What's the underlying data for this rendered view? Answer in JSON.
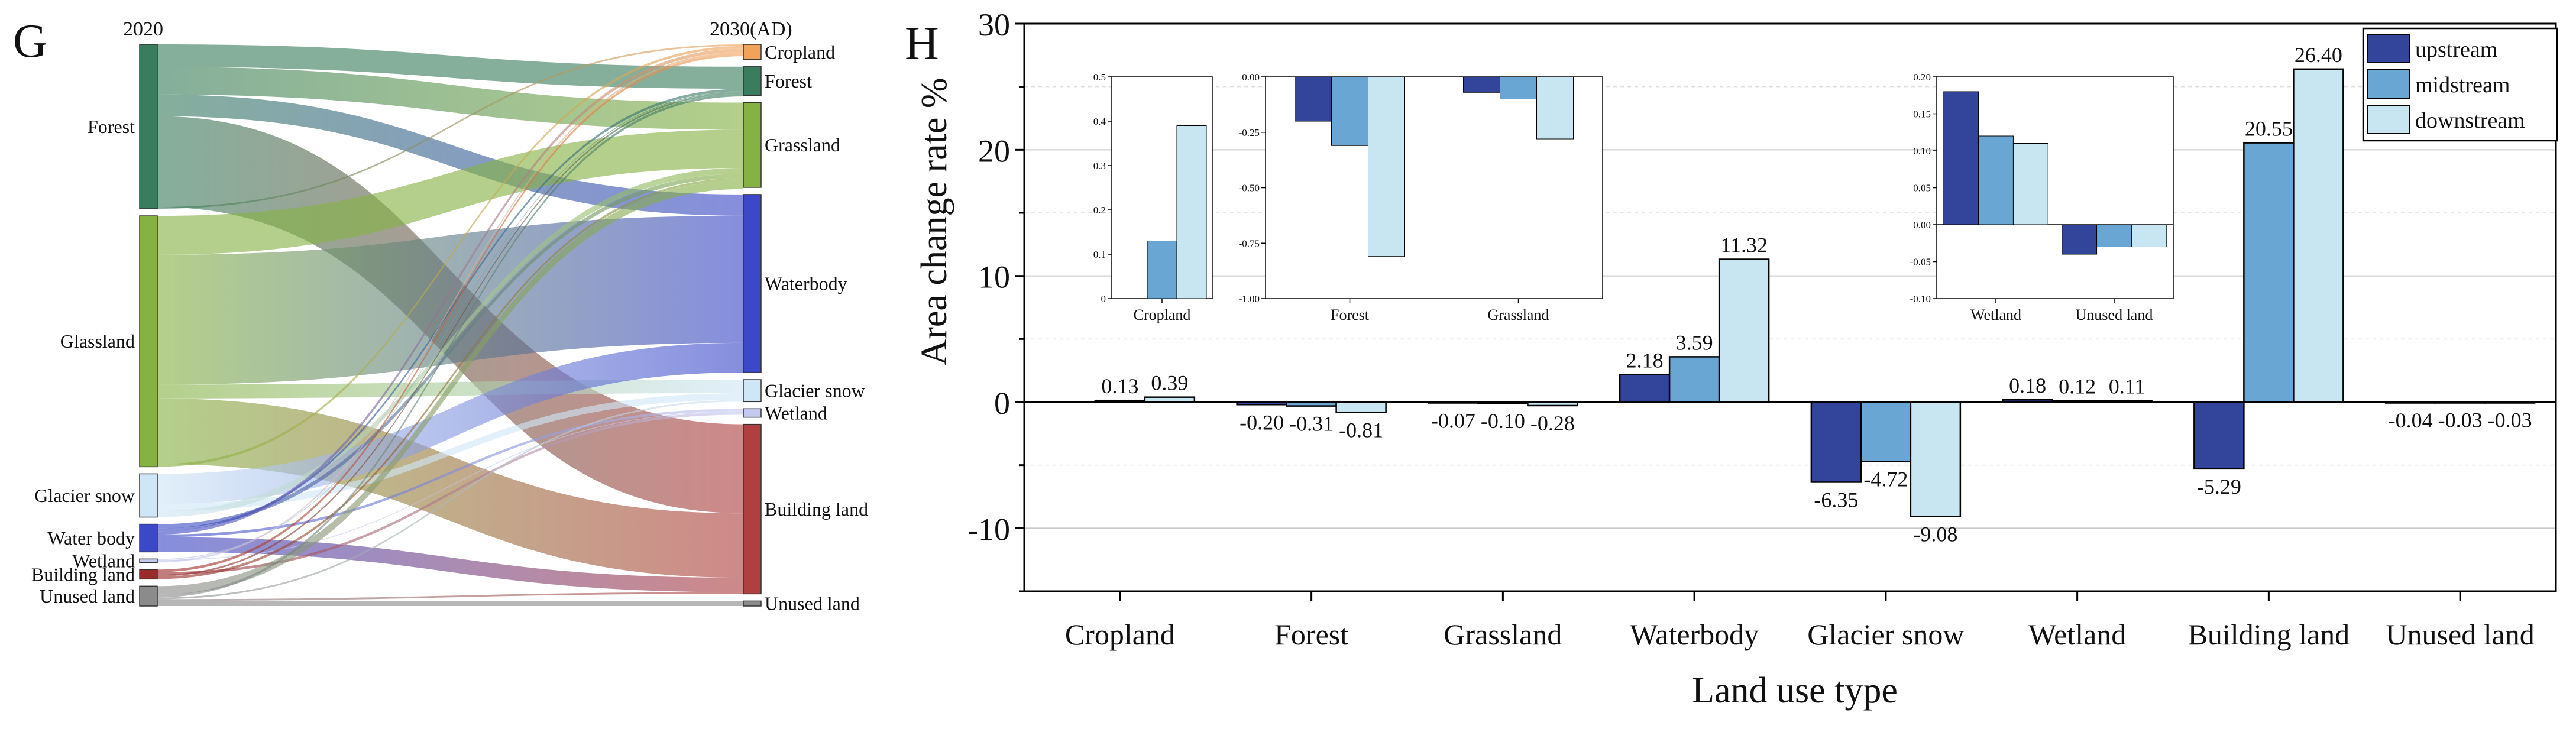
{
  "chart_data": [
    {
      "type": "sankey",
      "panel_letter": "G",
      "left_year": "2020",
      "right_year": "2030(AD)",
      "left_nodes": [
        {
          "key": "forest",
          "label": "Forest",
          "value": 19,
          "color": "#3a7d5e"
        },
        {
          "key": "grassland",
          "label": "Glassland",
          "value": 29,
          "color": "#86b244"
        },
        {
          "key": "glacier",
          "label": "Glacier snow",
          "value": 5,
          "color": "#cfe6f6"
        },
        {
          "key": "water",
          "label": "Water body",
          "value": 3.2,
          "color": "#3b49c9"
        },
        {
          "key": "wetland",
          "label": "Wetland",
          "value": 0.4,
          "color": "#c4c9f0"
        },
        {
          "key": "building",
          "label": "Building land",
          "value": 1.1,
          "color": "#9a2b2b"
        },
        {
          "key": "unused",
          "label": "Unused land",
          "value": 2.3,
          "color": "#8b8b8b"
        }
      ],
      "right_nodes": [
        {
          "key": "cropland",
          "label": "Cropland",
          "value": 1.8,
          "color": "#f1a35b"
        },
        {
          "key": "forest",
          "label": "Forest",
          "value": 3.4,
          "color": "#3a7d5e"
        },
        {
          "key": "grassland",
          "label": "Grassland",
          "value": 10,
          "color": "#86b244"
        },
        {
          "key": "water",
          "label": "Waterbody",
          "value": 21,
          "color": "#3b49c9"
        },
        {
          "key": "glacier",
          "label": "Glacier snow",
          "value": 2.6,
          "color": "#cfe6f6"
        },
        {
          "key": "wetland",
          "label": "Wetland",
          "value": 1,
          "color": "#c4c9f0"
        },
        {
          "key": "building",
          "label": "Building land",
          "value": 20,
          "color": "#b04040"
        },
        {
          "key": "unused",
          "label": "Unused land",
          "value": 0.6,
          "color": "#8b8b8b"
        }
      ],
      "flows": [
        {
          "from": "forest",
          "to": "forest",
          "value": 2.6
        },
        {
          "from": "forest",
          "to": "grassland",
          "value": 3.2
        },
        {
          "from": "forest",
          "to": "water",
          "value": 2.5
        },
        {
          "from": "forest",
          "to": "building",
          "value": 10.5
        },
        {
          "from": "forest",
          "to": "cropland",
          "value": 0.2
        },
        {
          "from": "grassland",
          "to": "grassland",
          "value": 4.5
        },
        {
          "from": "grassland",
          "to": "water",
          "value": 15
        },
        {
          "from": "grassland",
          "to": "glacier",
          "value": 1.6
        },
        {
          "from": "grassland",
          "to": "building",
          "value": 7.6
        },
        {
          "from": "grassland",
          "to": "cropland",
          "value": 0.3
        },
        {
          "from": "glacier",
          "to": "water",
          "value": 3.5
        },
        {
          "from": "glacier",
          "to": "glacier",
          "value": 0.8
        },
        {
          "from": "glacier",
          "to": "grassland",
          "value": 0.7
        },
        {
          "from": "water",
          "to": "grassland",
          "value": 0.5
        },
        {
          "from": "water",
          "to": "forest",
          "value": 0.3
        },
        {
          "from": "water",
          "to": "cropland",
          "value": 0.4
        },
        {
          "from": "water",
          "to": "wetland",
          "value": 0.3
        },
        {
          "from": "water",
          "to": "building",
          "value": 1.7
        },
        {
          "from": "wetland",
          "to": "forest",
          "value": 0.1
        },
        {
          "from": "wetland",
          "to": "wetland",
          "value": 0.1
        },
        {
          "from": "wetland",
          "to": "cropland",
          "value": 0.2
        },
        {
          "from": "building",
          "to": "cropland",
          "value": 0.3
        },
        {
          "from": "building",
          "to": "wetland",
          "value": 0.3
        },
        {
          "from": "building",
          "to": "forest",
          "value": 0.2
        },
        {
          "from": "building",
          "to": "grassland",
          "value": 0.3
        },
        {
          "from": "unused",
          "to": "grassland",
          "value": 1
        },
        {
          "from": "unused",
          "to": "forest",
          "value": 0.3
        },
        {
          "from": "unused",
          "to": "glacier",
          "value": 0.2
        },
        {
          "from": "unused",
          "to": "building",
          "value": 0.2
        },
        {
          "from": "unused",
          "to": "unused",
          "value": 0.6
        }
      ]
    },
    {
      "type": "bar",
      "panel_letter": "H",
      "title": "",
      "xlabel": "Land use type",
      "ylabel": "Area change rate %",
      "ylim": [
        -15,
        30
      ],
      "yticks": [
        -10,
        0,
        10,
        20,
        30
      ],
      "grid": true,
      "categories": [
        "Cropland",
        "Forest",
        "Grassland",
        "Waterbody",
        "Glacier snow",
        "Wetland",
        "Building land",
        "Unused land"
      ],
      "series": [
        {
          "name": "upstream",
          "color": "#33449b",
          "values": [
            null,
            -0.2,
            -0.07,
            2.18,
            -6.35,
            0.18,
            -5.29,
            -0.04
          ]
        },
        {
          "name": "midstream",
          "color": "#6aa6d3",
          "values": [
            0.13,
            -0.31,
            -0.1,
            3.59,
            -4.72,
            0.12,
            20.55,
            -0.03
          ]
        },
        {
          "name": "downstream",
          "color": "#c7e6f2",
          "values": [
            0.39,
            -0.81,
            -0.28,
            11.32,
            -9.08,
            0.11,
            26.4,
            -0.03
          ]
        }
      ],
      "data_labels": [
        [
          null,
          "-0.20",
          "-0.07",
          "2.18",
          "-6.35",
          "0.18",
          "-5.29",
          "-0.04"
        ],
        [
          "0.13",
          "-0.31",
          "-0.10",
          "3.59",
          "-4.72",
          "0.12",
          "20.55",
          "-0.03"
        ],
        [
          "0.39",
          "-0.81",
          "-0.28",
          "11.32",
          "-9.08",
          "0.11",
          "26.40",
          "-0.03"
        ]
      ],
      "legend": {
        "placement": "top-right",
        "entries": [
          "upstream",
          "midstream",
          "downstream"
        ]
      },
      "insets": [
        {
          "key": "inset1",
          "categories": [
            "Cropland"
          ],
          "ylim": [
            0,
            0.5
          ],
          "yticks": [
            0,
            0.1,
            0.2,
            0.3,
            0.4,
            0.5
          ],
          "ytick_labels": [
            "0",
            "0.1",
            "0.2",
            "0.3",
            "0.4",
            "0.5"
          ],
          "values": [
            [
              null
            ],
            [
              0.13
            ],
            [
              0.39
            ]
          ]
        },
        {
          "key": "inset2",
          "categories": [
            "Forest",
            "Grassland"
          ],
          "ylim": [
            -1,
            0
          ],
          "yticks": [
            0,
            -0.25,
            -0.5,
            -0.75,
            -1
          ],
          "ytick_labels": [
            "0.00",
            "-0.25",
            "-0.50",
            "-0.75",
            "-1.00"
          ],
          "values": [
            [
              -0.2,
              -0.07
            ],
            [
              -0.31,
              -0.1
            ],
            [
              -0.81,
              -0.28
            ]
          ]
        },
        {
          "key": "inset3",
          "categories": [
            "Wetland",
            "Unused land"
          ],
          "ylim": [
            -0.1,
            0.2
          ],
          "yticks": [
            0.2,
            0.15,
            0.1,
            0.05,
            0,
            -0.05,
            -0.1
          ],
          "ytick_labels": [
            "0.20",
            "0.15",
            "0.10",
            "0.05",
            "0.00",
            "-0.05",
            "-0.10"
          ],
          "values": [
            [
              0.18,
              -0.04
            ],
            [
              0.12,
              -0.03
            ],
            [
              0.11,
              -0.03
            ]
          ]
        }
      ]
    }
  ]
}
